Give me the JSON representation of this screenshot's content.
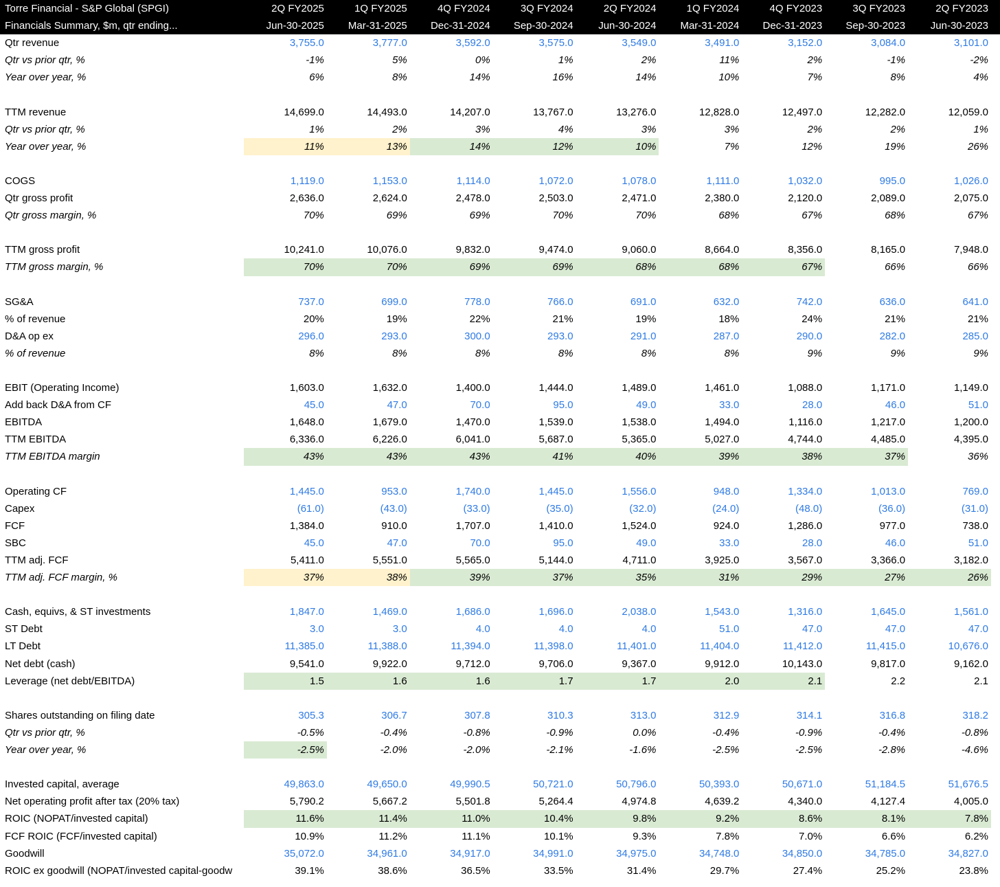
{
  "colors": {
    "text": "#000000",
    "input_text": "#2f7be5",
    "header_bg": "#000000",
    "header_text": "#ffffff",
    "yellow_fill": "#fff2cc",
    "green_fill": "#d9ead3"
  },
  "header": {
    "title": "Torre Financial - S&P Global (SPGI)",
    "subtitle": "Financials Summary, $m, qtr ending...",
    "quarters": [
      "2Q FY2025",
      "1Q FY2025",
      "4Q FY2024",
      "3Q FY2024",
      "2Q FY2024",
      "1Q FY2024",
      "4Q FY2023",
      "3Q FY2023",
      "2Q FY2023"
    ],
    "dates": [
      "Jun-30-2025",
      "Mar-31-2025",
      "Dec-31-2024",
      "Sep-30-2024",
      "Jun-30-2024",
      "Mar-31-2024",
      "Dec-31-2023",
      "Sep-30-2023",
      "Jun-30-2023"
    ]
  },
  "rows": [
    {
      "label": "Qtr revenue",
      "input": true,
      "values": [
        "3,755.0",
        "3,777.0",
        "3,592.0",
        "3,575.0",
        "3,549.0",
        "3,491.0",
        "3,152.0",
        "3,084.0",
        "3,101.0"
      ]
    },
    {
      "label": "Qtr vs prior qtr, %",
      "italic": true,
      "values": [
        "-1%",
        "5%",
        "0%",
        "1%",
        "2%",
        "11%",
        "2%",
        "-1%",
        "-2%"
      ]
    },
    {
      "label": "Year over year, %",
      "italic": true,
      "values": [
        "6%",
        "8%",
        "14%",
        "16%",
        "14%",
        "10%",
        "7%",
        "8%",
        "4%"
      ]
    },
    {
      "blank": true
    },
    {
      "label": "TTM revenue",
      "values": [
        "14,699.0",
        "14,493.0",
        "14,207.0",
        "13,767.0",
        "13,276.0",
        "12,828.0",
        "12,497.0",
        "12,282.0",
        "12,059.0"
      ]
    },
    {
      "label": "Qtr vs prior qtr, %",
      "italic": true,
      "values": [
        "1%",
        "2%",
        "3%",
        "4%",
        "3%",
        "3%",
        "2%",
        "2%",
        "1%"
      ]
    },
    {
      "label": "Year over year, %",
      "italic": true,
      "values": [
        "11%",
        "13%",
        "14%",
        "12%",
        "10%",
        "7%",
        "12%",
        "19%",
        "26%"
      ],
      "fills": [
        "#fff2cc",
        "#fff2cc",
        "#d9ead3",
        "#d9ead3",
        "#d9ead3",
        null,
        null,
        null,
        null
      ]
    },
    {
      "blank": true
    },
    {
      "label": "COGS",
      "input": true,
      "values": [
        "1,119.0",
        "1,153.0",
        "1,114.0",
        "1,072.0",
        "1,078.0",
        "1,111.0",
        "1,032.0",
        "995.0",
        "1,026.0"
      ]
    },
    {
      "label": "Qtr gross profit",
      "values": [
        "2,636.0",
        "2,624.0",
        "2,478.0",
        "2,503.0",
        "2,471.0",
        "2,380.0",
        "2,120.0",
        "2,089.0",
        "2,075.0"
      ]
    },
    {
      "label": "Qtr gross margin, %",
      "italic": true,
      "values": [
        "70%",
        "69%",
        "69%",
        "70%",
        "70%",
        "68%",
        "67%",
        "68%",
        "67%"
      ]
    },
    {
      "blank": true
    },
    {
      "label": "TTM gross profit",
      "values": [
        "10,241.0",
        "10,076.0",
        "9,832.0",
        "9,474.0",
        "9,060.0",
        "8,664.0",
        "8,356.0",
        "8,165.0",
        "7,948.0"
      ]
    },
    {
      "label": "TTM gross margin, %",
      "italic": true,
      "values": [
        "70%",
        "70%",
        "69%",
        "69%",
        "68%",
        "68%",
        "67%",
        "66%",
        "66%"
      ],
      "fills": [
        "#d9ead3",
        "#d9ead3",
        "#d9ead3",
        "#d9ead3",
        "#d9ead3",
        "#d9ead3",
        "#d9ead3",
        null,
        null
      ]
    },
    {
      "blank": true
    },
    {
      "label": "SG&A",
      "input": true,
      "values": [
        "737.0",
        "699.0",
        "778.0",
        "766.0",
        "691.0",
        "632.0",
        "742.0",
        "636.0",
        "641.0"
      ]
    },
    {
      "label": "% of revenue",
      "values": [
        "20%",
        "19%",
        "22%",
        "21%",
        "19%",
        "18%",
        "24%",
        "21%",
        "21%"
      ]
    },
    {
      "label": "D&A op ex",
      "input": true,
      "values": [
        "296.0",
        "293.0",
        "300.0",
        "293.0",
        "291.0",
        "287.0",
        "290.0",
        "282.0",
        "285.0"
      ]
    },
    {
      "label": "% of revenue",
      "italic": true,
      "values": [
        "8%",
        "8%",
        "8%",
        "8%",
        "8%",
        "8%",
        "9%",
        "9%",
        "9%"
      ]
    },
    {
      "blank": true
    },
    {
      "label": "EBIT (Operating Income)",
      "values": [
        "1,603.0",
        "1,632.0",
        "1,400.0",
        "1,444.0",
        "1,489.0",
        "1,461.0",
        "1,088.0",
        "1,171.0",
        "1,149.0"
      ]
    },
    {
      "label": "Add back D&A from CF",
      "input": true,
      "values": [
        "45.0",
        "47.0",
        "70.0",
        "95.0",
        "49.0",
        "33.0",
        "28.0",
        "46.0",
        "51.0"
      ]
    },
    {
      "label": "EBITDA",
      "values": [
        "1,648.0",
        "1,679.0",
        "1,470.0",
        "1,539.0",
        "1,538.0",
        "1,494.0",
        "1,116.0",
        "1,217.0",
        "1,200.0"
      ]
    },
    {
      "label": "TTM EBITDA",
      "values": [
        "6,336.0",
        "6,226.0",
        "6,041.0",
        "5,687.0",
        "5,365.0",
        "5,027.0",
        "4,744.0",
        "4,485.0",
        "4,395.0"
      ]
    },
    {
      "label": "TTM EBITDA margin",
      "italic": true,
      "values": [
        "43%",
        "43%",
        "43%",
        "41%",
        "40%",
        "39%",
        "38%",
        "37%",
        "36%"
      ],
      "fills": [
        "#d9ead3",
        "#d9ead3",
        "#d9ead3",
        "#d9ead3",
        "#d9ead3",
        "#d9ead3",
        "#d9ead3",
        "#d9ead3",
        null
      ]
    },
    {
      "blank": true
    },
    {
      "label": "Operating CF",
      "input": true,
      "values": [
        "1,445.0",
        "953.0",
        "1,740.0",
        "1,445.0",
        "1,556.0",
        "948.0",
        "1,334.0",
        "1,013.0",
        "769.0"
      ]
    },
    {
      "label": "Capex",
      "input": true,
      "values": [
        "(61.0)",
        "(43.0)",
        "(33.0)",
        "(35.0)",
        "(32.0)",
        "(24.0)",
        "(48.0)",
        "(36.0)",
        "(31.0)"
      ]
    },
    {
      "label": "FCF",
      "values": [
        "1,384.0",
        "910.0",
        "1,707.0",
        "1,410.0",
        "1,524.0",
        "924.0",
        "1,286.0",
        "977.0",
        "738.0"
      ]
    },
    {
      "label": "SBC",
      "input": true,
      "values": [
        "45.0",
        "47.0",
        "70.0",
        "95.0",
        "49.0",
        "33.0",
        "28.0",
        "46.0",
        "51.0"
      ]
    },
    {
      "label": "TTM adj. FCF",
      "values": [
        "5,411.0",
        "5,551.0",
        "5,565.0",
        "5,144.0",
        "4,711.0",
        "3,925.0",
        "3,567.0",
        "3,366.0",
        "3,182.0"
      ]
    },
    {
      "label": "TTM adj. FCF margin, %",
      "italic": true,
      "values": [
        "37%",
        "38%",
        "39%",
        "37%",
        "35%",
        "31%",
        "29%",
        "27%",
        "26%"
      ],
      "fills": [
        "#fff2cc",
        "#fff2cc",
        "#d9ead3",
        "#d9ead3",
        "#d9ead3",
        "#d9ead3",
        "#d9ead3",
        "#d9ead3",
        "#d9ead3"
      ]
    },
    {
      "blank": true
    },
    {
      "label": "Cash, equivs, & ST investments",
      "input": true,
      "values": [
        "1,847.0",
        "1,469.0",
        "1,686.0",
        "1,696.0",
        "2,038.0",
        "1,543.0",
        "1,316.0",
        "1,645.0",
        "1,561.0"
      ]
    },
    {
      "label": "ST Debt",
      "input": true,
      "values": [
        "3.0",
        "3.0",
        "4.0",
        "4.0",
        "4.0",
        "51.0",
        "47.0",
        "47.0",
        "47.0"
      ]
    },
    {
      "label": "LT Debt",
      "input": true,
      "values": [
        "11,385.0",
        "11,388.0",
        "11,394.0",
        "11,398.0",
        "11,401.0",
        "11,404.0",
        "11,412.0",
        "11,415.0",
        "10,676.0"
      ]
    },
    {
      "label": "Net debt (cash)",
      "values": [
        "9,541.0",
        "9,922.0",
        "9,712.0",
        "9,706.0",
        "9,367.0",
        "9,912.0",
        "10,143.0",
        "9,817.0",
        "9,162.0"
      ]
    },
    {
      "label": "Leverage (net debt/EBITDA)",
      "values": [
        "1.5",
        "1.6",
        "1.6",
        "1.7",
        "1.7",
        "2.0",
        "2.1",
        "2.2",
        "2.1"
      ],
      "fills": [
        "#d9ead3",
        "#d9ead3",
        "#d9ead3",
        "#d9ead3",
        "#d9ead3",
        "#d9ead3",
        "#d9ead3",
        null,
        null
      ]
    },
    {
      "blank": true
    },
    {
      "label": "Shares outstanding on filing date",
      "input": true,
      "values": [
        "305.3",
        "306.7",
        "307.8",
        "310.3",
        "313.0",
        "312.9",
        "314.1",
        "316.8",
        "318.2"
      ]
    },
    {
      "label": "Qtr vs prior qtr, %",
      "italic": true,
      "values": [
        "-0.5%",
        "-0.4%",
        "-0.8%",
        "-0.9%",
        "0.0%",
        "-0.4%",
        "-0.9%",
        "-0.4%",
        "-0.8%"
      ]
    },
    {
      "label": "Year over year, %",
      "italic": true,
      "values": [
        "-2.5%",
        "-2.0%",
        "-2.0%",
        "-2.1%",
        "-1.6%",
        "-2.5%",
        "-2.5%",
        "-2.8%",
        "-4.6%"
      ],
      "fills": [
        "#d9ead3",
        null,
        null,
        null,
        null,
        null,
        null,
        null,
        null
      ]
    },
    {
      "blank": true
    },
    {
      "label": "Invested capital, average",
      "input": true,
      "values": [
        "49,863.0",
        "49,650.0",
        "49,990.5",
        "50,721.0",
        "50,796.0",
        "50,393.0",
        "50,671.0",
        "51,184.5",
        "51,676.5"
      ]
    },
    {
      "label": "Net operating profit after tax (20% tax)",
      "values": [
        "5,790.2",
        "5,667.2",
        "5,501.8",
        "5,264.4",
        "4,974.8",
        "4,639.2",
        "4,340.0",
        "4,127.4",
        "4,005.0"
      ]
    },
    {
      "label": "ROIC (NOPAT/invested capital)",
      "values": [
        "11.6%",
        "11.4%",
        "11.0%",
        "10.4%",
        "9.8%",
        "9.2%",
        "8.6%",
        "8.1%",
        "7.8%"
      ],
      "fills": [
        "#d9ead3",
        "#d9ead3",
        "#d9ead3",
        "#d9ead3",
        "#d9ead3",
        "#d9ead3",
        "#d9ead3",
        "#d9ead3",
        "#d9ead3"
      ]
    },
    {
      "label": "FCF ROIC (FCF/invested capital)",
      "values": [
        "10.9%",
        "11.2%",
        "11.1%",
        "10.1%",
        "9.3%",
        "7.8%",
        "7.0%",
        "6.6%",
        "6.2%"
      ]
    },
    {
      "label": "Goodwill",
      "input": true,
      "values": [
        "35,072.0",
        "34,961.0",
        "34,917.0",
        "34,991.0",
        "34,975.0",
        "34,748.0",
        "34,850.0",
        "34,785.0",
        "34,827.0"
      ]
    },
    {
      "label": "ROIC ex goodwill (NOPAT/invested capital-goodw",
      "values": [
        "39.1%",
        "38.6%",
        "36.5%",
        "33.5%",
        "31.4%",
        "29.7%",
        "27.4%",
        "25.2%",
        "23.8%"
      ]
    }
  ]
}
